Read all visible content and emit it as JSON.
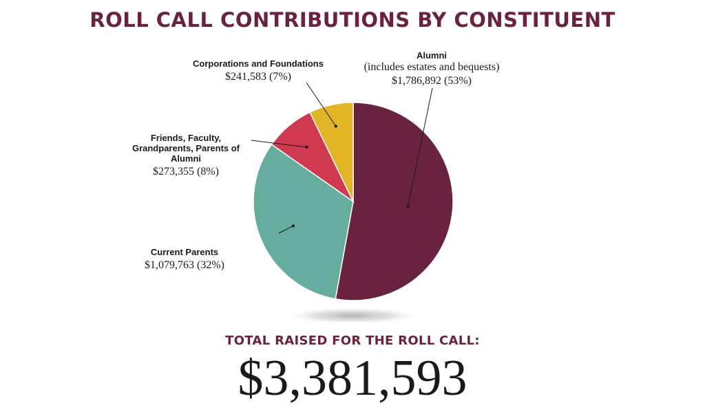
{
  "title": "ROLL CALL CONTRIBUTIONS BY CONSTITUENT",
  "total_label": "TOTAL RAISED FOR THE ROLL CALL:",
  "total_value": "$3,381,593",
  "chart_data": {
    "type": "pie",
    "title": "ROLL CALL CONTRIBUTIONS BY CONSTITUENT",
    "slices": [
      {
        "label": "Alumni",
        "sublabel": "(includes estates and bequests)",
        "value": 1786892,
        "display": "$1,786,892 (53%)",
        "percent": 53,
        "color": "#6a2241"
      },
      {
        "label": "Current Parents",
        "sublabel": "",
        "value": 1079763,
        "display": "$1,079,763 (32%)",
        "percent": 32,
        "color": "#66ad9f"
      },
      {
        "label": "Friends, Faculty, Grandparents, Parents of Alumni",
        "sublabel": "",
        "value": 273355,
        "display": "$273,355 (8%)",
        "percent": 8,
        "color": "#cf3a50"
      },
      {
        "label": "Corporations and Foundations",
        "sublabel": "",
        "value": 241583,
        "display": "$241,583 (7%)",
        "percent": 7,
        "color": "#e1b526"
      }
    ],
    "total": 3381593
  }
}
